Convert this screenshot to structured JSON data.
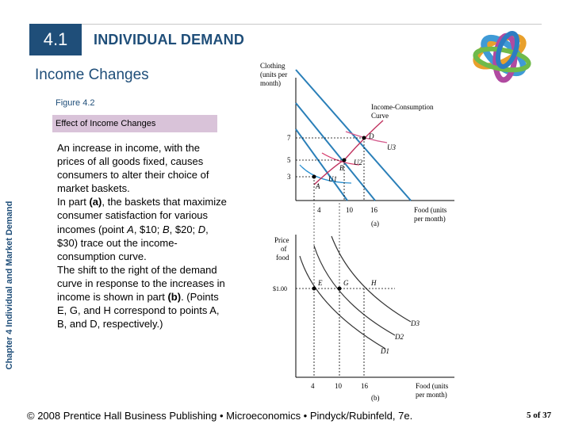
{
  "header": {
    "section_number": "4.1",
    "section_title": "INDIVIDUAL DEMAND",
    "subtitle": "Income Changes"
  },
  "figure": {
    "number": "Figure 4.2",
    "caption": "Effect of Income Changes"
  },
  "side_label": "Chapter 4 Individual and Market Demand",
  "body": {
    "p1": "An increase in income, with the prices of all goods fixed, causes consumers to alter their choice of market baskets.",
    "p2_before": "In part ",
    "p2_bold": "(a)",
    "p2_mid1": ", the baskets that maximize consumer satisfaction for various incomes (point ",
    "A": "A",
    "p2_mid2": ", $10; ",
    "B": "B",
    "p2_mid3": ", $20; ",
    "D": "D",
    "p2_after": ", $30) trace out the income-consumption curve.",
    "p3_before": "The shift to the right of the demand curve in response to the increases in income is shown in part ",
    "p3_bold": "(b)",
    "p3_after": ". (Points E, G, and H correspond to points A, B, and D, respectively.)"
  },
  "diagram": {
    "top": {
      "ylabel_lines": [
        "Clothing",
        "(units per",
        "month)"
      ],
      "xlabel_lines": [
        "Food (units",
        "per month)"
      ],
      "curve_label_lines": [
        "Income-Consumption",
        "Curve"
      ],
      "y_ticks": [
        "7",
        "5",
        "3"
      ],
      "x_ticks": [
        "4",
        "10",
        "16"
      ],
      "points": [
        "A",
        "B",
        "D"
      ],
      "indiff": [
        "U1",
        "U2",
        "U3"
      ],
      "part": "(a)"
    },
    "bottom": {
      "ylabel_lines": [
        "Price",
        "of",
        "food"
      ],
      "xlabel_lines": [
        "Food (units",
        "per month)"
      ],
      "price_tick": "$1.00",
      "x_ticks": [
        "4",
        "10",
        "16"
      ],
      "points": [
        "E",
        "G",
        "H"
      ],
      "demand": [
        "D1",
        "D2",
        "D3"
      ],
      "part": "(b)"
    },
    "colors": {
      "budget": "#2a7fb8",
      "indiff1": "#2a8fd0",
      "indiff2": "#d63a6a",
      "indiff3": "#d45a8c",
      "icc": "#c0325f",
      "demand": "#333333"
    }
  },
  "footer": "© 2008 Prentice Hall Business Publishing • Microeconomics • Pindyck/Rubinfeld, 7e.",
  "page": "5 of 37",
  "colors": {
    "title": "#1f4e79",
    "caption_bg": "#d9c3d9",
    "section_box": "#1f4e79"
  }
}
